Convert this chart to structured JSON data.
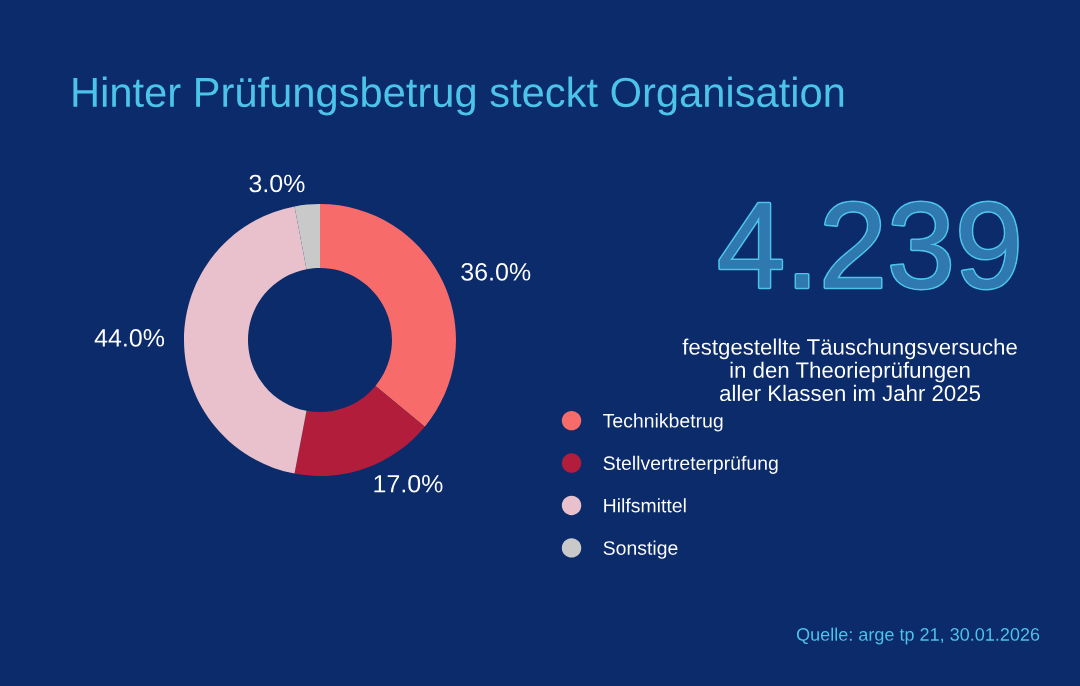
{
  "chart_data": {
    "type": "donut",
    "title": "Hinter Prüfungsbetrug steckt Organisation",
    "categories": [
      "Technikbetrug",
      "Stellvertreterprüfung",
      "Hilfsmittel",
      "Sonstige"
    ],
    "values": [
      36.0,
      17.0,
      44.0,
      3.0
    ],
    "value_labels": [
      "36.0%",
      "17.0%",
      "44.0%",
      "3.0%"
    ],
    "colors": [
      "#f76b6b",
      "#b21d3c",
      "#e9c1cc",
      "#c9c9c9"
    ],
    "legend": "right",
    "annotations": [
      "4.239",
      "festgestellte Täuschungsversuche\nin den Theorieprüfungen\naller Klassen im Jahr 2025",
      "Quelle: arge tp 21, 30.01.2026"
    ]
  }
}
